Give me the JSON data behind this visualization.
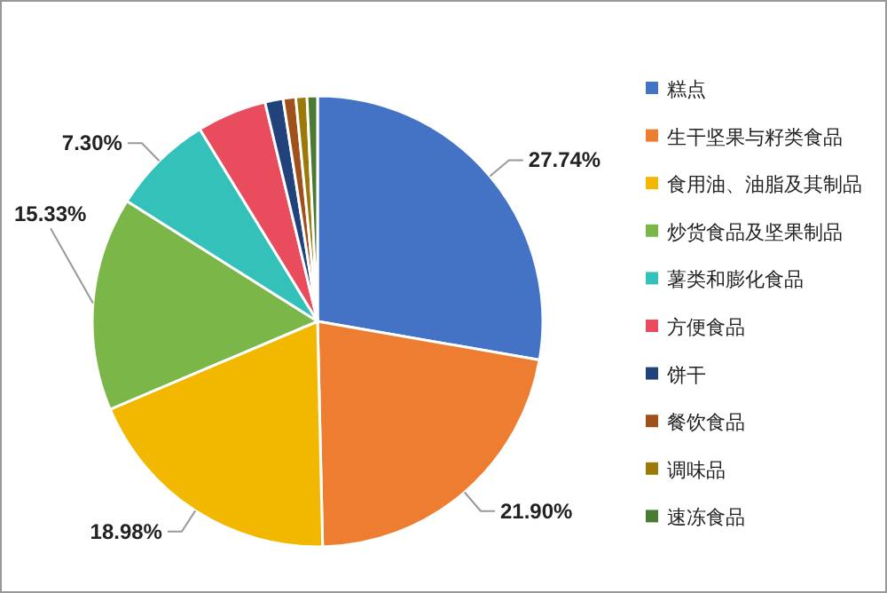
{
  "chart_data": {
    "type": "pie",
    "categories": [
      "糕点",
      "生干坚果与籽类食品",
      "食用油、油脂及其制品",
      "炒货食品及坚果制品",
      "薯类和膨化食品",
      "方便食品",
      "饼干",
      "餐饮食品",
      "调味品",
      "速冻食品"
    ],
    "values": [
      27.74,
      21.9,
      18.98,
      15.33,
      7.3,
      5.0,
      1.3,
      0.9,
      0.8,
      0.75
    ],
    "value_labels": [
      "27.74%",
      "21.90%",
      "18.98%",
      "15.33%",
      "7.30%",
      null,
      null,
      null,
      null,
      null
    ],
    "colors": [
      "#4472c4",
      "#ed7d31",
      "#f2b800",
      "#7ab648",
      "#33c1b9",
      "#e84c5d",
      "#22427c",
      "#a0501a",
      "#9c7a0a",
      "#4a7a32"
    ],
    "legend": "right"
  }
}
